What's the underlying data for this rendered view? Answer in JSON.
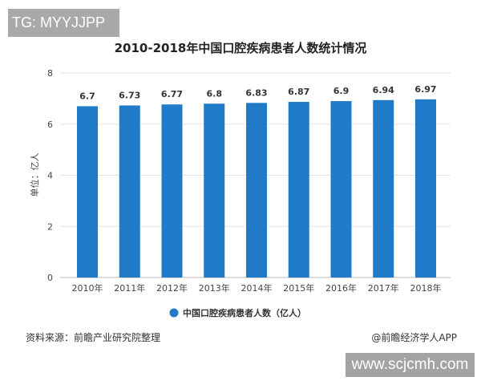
{
  "overlay_top": "TG: MYYJJPP",
  "overlay_bottom": "www.scjcmh.com",
  "source": "资料来源：前瞻产业研究院整理",
  "credit": "@前瞻经济学人APP",
  "chart_data": {
    "type": "bar",
    "title": "2010-2018年中国口腔疾病患者人数统计情况",
    "ylabel": "单位：亿人",
    "xlabel": "",
    "categories": [
      "2010年",
      "2011年",
      "2012年",
      "2013年",
      "2014年",
      "2015年",
      "2016年",
      "2017年",
      "2018年"
    ],
    "series": [
      {
        "name": "中国口腔疾病患者人数（亿人）",
        "values": [
          6.7,
          6.73,
          6.77,
          6.8,
          6.83,
          6.87,
          6.9,
          6.94,
          6.97
        ],
        "color": "#1f7bc8"
      }
    ],
    "data_labels": [
      "6.7",
      "6.73",
      "6.77",
      "6.8",
      "6.83",
      "6.87",
      "6.9",
      "6.94",
      "6.97"
    ],
    "ylim": [
      0,
      8
    ],
    "yticks": [
      "0",
      "2",
      "4",
      "6",
      "8"
    ],
    "grid": true,
    "legend": "bottom"
  }
}
